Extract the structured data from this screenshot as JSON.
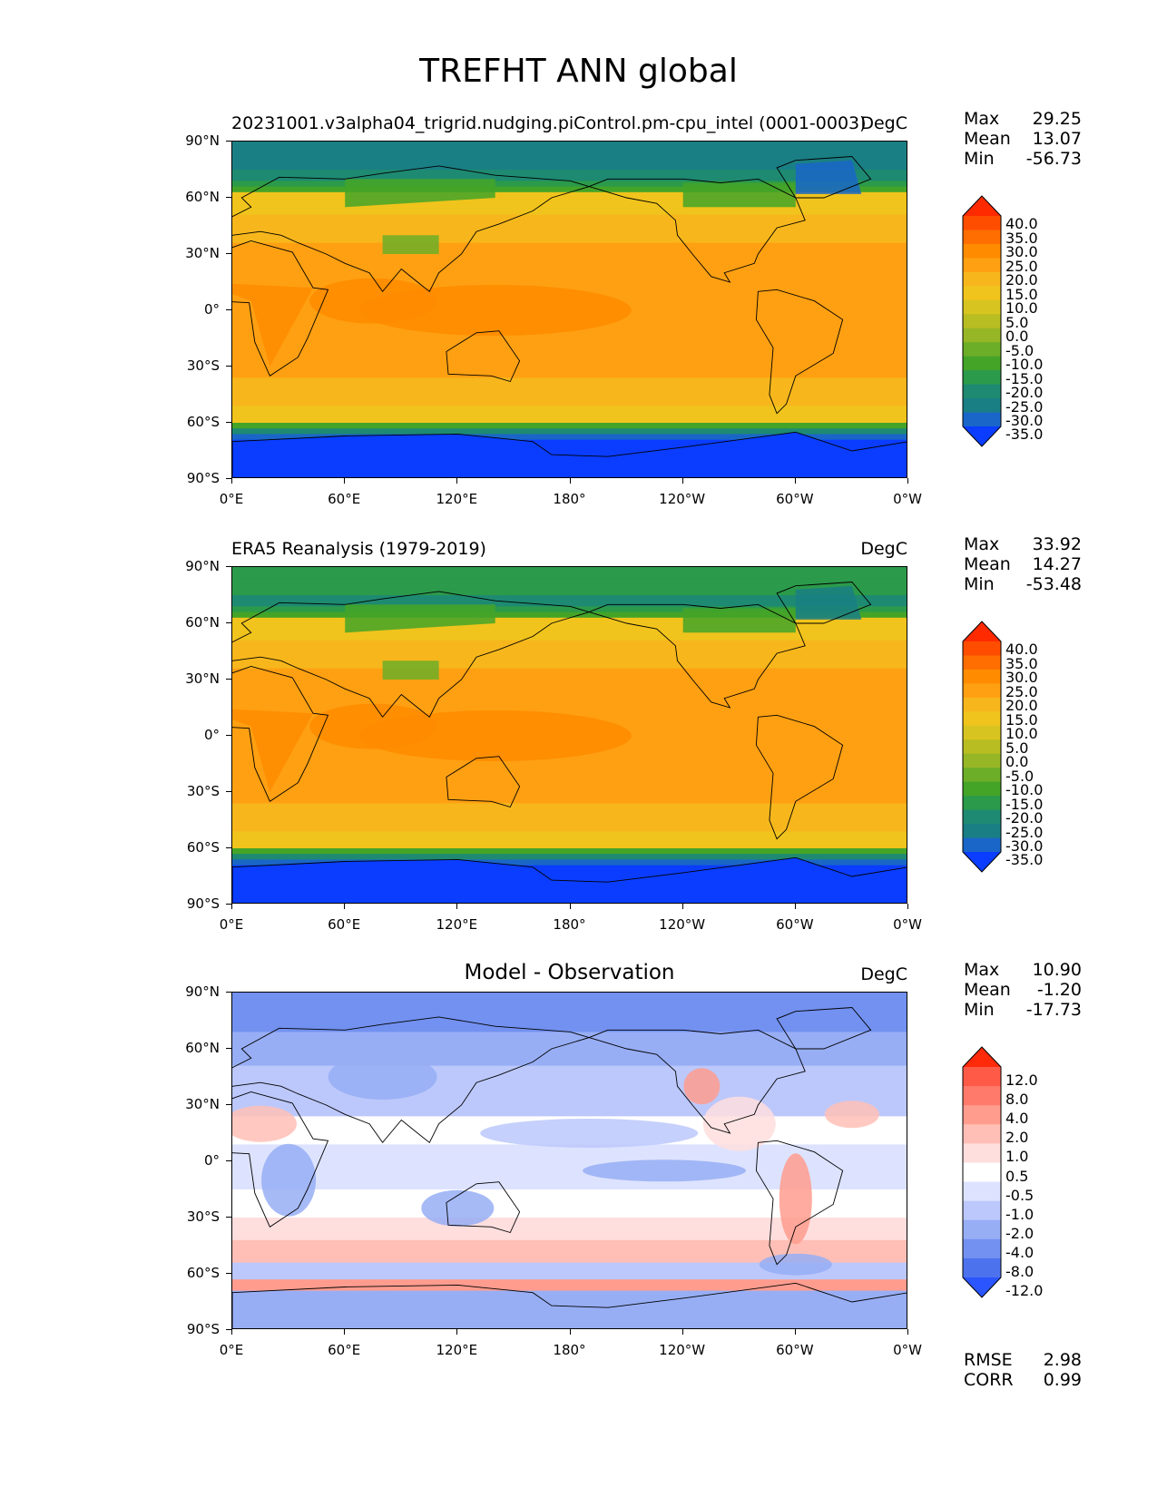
{
  "suptitle": "TREFHT ANN global",
  "panels": [
    {
      "title": "20231001.v3alpha04_trigrid.nudging.piControl.pm-cpu_intel (0001-0003)",
      "title_style": "left",
      "units": "DegC",
      "stats": [
        {
          "label": "Max",
          "value": "29.25"
        },
        {
          "label": "Mean",
          "value": "13.07"
        },
        {
          "label": "Min",
          "value": "-56.73"
        }
      ],
      "colorbar": {
        "levels": [
          "40.0",
          "35.0",
          "30.0",
          "25.0",
          "20.0",
          "15.0",
          "10.0",
          "5.0",
          "0.0",
          "-5.0",
          "-10.0",
          "-15.0",
          "-20.0",
          "-25.0",
          "-30.0",
          "-35.0"
        ],
        "colors": [
          "#ff2a00",
          "#ff4d00",
          "#ff6e00",
          "#ff8c00",
          "#ffa012",
          "#f7b71c",
          "#f0c41c",
          "#d8c420",
          "#b8bd22",
          "#96b626",
          "#6cae28",
          "#44a428",
          "#2b9a4a",
          "#1e8a72",
          "#1a7f84",
          "#1a66c8",
          "#0a3dff"
        ]
      },
      "map_style": "temp"
    },
    {
      "title": "ERA5 Reanalysis (1979-2019)",
      "title_style": "left",
      "units": "DegC",
      "stats": [
        {
          "label": "Max",
          "value": "33.92"
        },
        {
          "label": "Mean",
          "value": "14.27"
        },
        {
          "label": "Min",
          "value": "-53.48"
        }
      ],
      "colorbar": {
        "levels": [
          "40.0",
          "35.0",
          "30.0",
          "25.0",
          "20.0",
          "15.0",
          "10.0",
          "5.0",
          "0.0",
          "-5.0",
          "-10.0",
          "-15.0",
          "-20.0",
          "-25.0",
          "-30.0",
          "-35.0"
        ],
        "colors": [
          "#ff2a00",
          "#ff4d00",
          "#ff6e00",
          "#ff8c00",
          "#ffa012",
          "#f7b71c",
          "#f0c41c",
          "#d8c420",
          "#b8bd22",
          "#96b626",
          "#6cae28",
          "#44a428",
          "#2b9a4a",
          "#1e8a72",
          "#1a7f84",
          "#1a66c8",
          "#0a3dff"
        ]
      },
      "map_style": "temp2"
    },
    {
      "title": "Model - Observation",
      "title_style": "center",
      "units": "DegC",
      "stats": [
        {
          "label": "Max",
          "value": "10.90"
        },
        {
          "label": "Mean",
          "value": "-1.20"
        },
        {
          "label": "Min",
          "value": "-17.73"
        }
      ],
      "colorbar": {
        "levels": [
          "12.0",
          "8.0",
          "4.0",
          "2.0",
          "1.0",
          "0.5",
          "-0.5",
          "-1.0",
          "-2.0",
          "-4.0",
          "-8.0",
          "-12.0"
        ],
        "colors": [
          "#ff2a0a",
          "#ff5a48",
          "#ff7a6a",
          "#ff9c8e",
          "#ffbfb6",
          "#ffdede",
          "#ffffff",
          "#dde3ff",
          "#bcc8fb",
          "#97aef5",
          "#7291f0",
          "#4d72ee",
          "#2a55ff"
        ]
      },
      "extra_stats": [
        {
          "label": "RMSE",
          "value": "2.98"
        },
        {
          "label": "CORR",
          "value": "0.99"
        }
      ],
      "map_style": "diff"
    }
  ],
  "lat_labels": [
    "90°N",
    "60°N",
    "30°N",
    "0°",
    "30°S",
    "60°S",
    "90°S"
  ],
  "lon_labels": [
    "0°E",
    "60°E",
    "120°E",
    "180°",
    "120°W",
    "60°W",
    "0°W"
  ]
}
